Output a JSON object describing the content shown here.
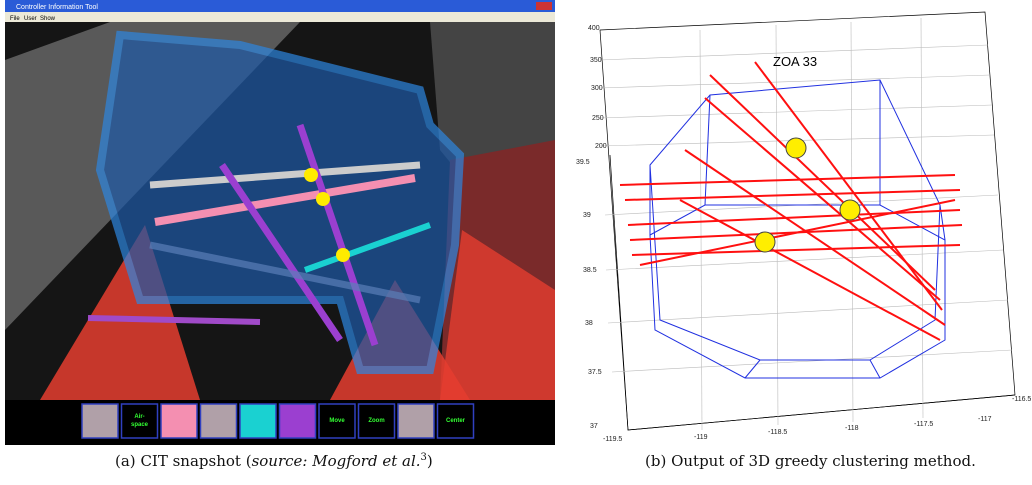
{
  "figure_a": {
    "window_title": "Controller Information Tool",
    "menu": [
      "File",
      "User",
      "Show"
    ],
    "buttons": [
      "Air-",
      "space",
      "Move",
      "Zoom",
      "Center"
    ],
    "caption": {
      "label": "(a)",
      "text": "CIT snapshot (",
      "source": "source: Mogford et al.",
      "ref": "3",
      "close": ")"
    }
  },
  "figure_b": {
    "annotation": "ZOA 33",
    "z_ticks": [
      400,
      350,
      300,
      250,
      200
    ],
    "y_ticks": [
      39.5,
      39,
      38.5,
      38,
      37.5,
      37
    ],
    "x_ticks": [
      -119.5,
      -119,
      -118.5,
      -118,
      -117.5,
      -117,
      -116.5
    ],
    "caption": {
      "label": "(b)",
      "text": "Output of 3D greedy clustering method."
    }
  }
}
